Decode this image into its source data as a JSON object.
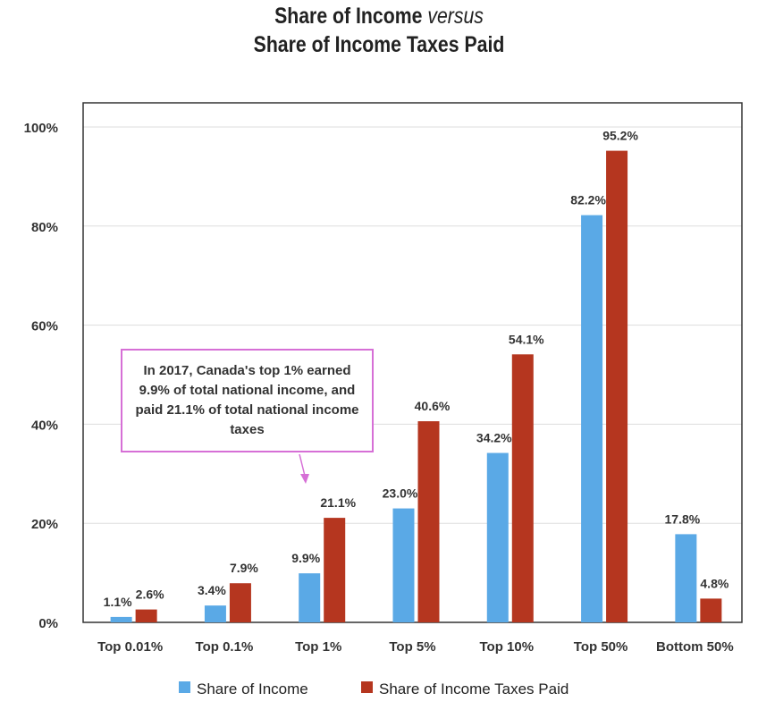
{
  "chart_data": {
    "type": "bar",
    "title_line1": "Share of Income",
    "title_italic": "versus",
    "title_line2": "Share of Income Taxes Paid",
    "categories": [
      "Top 0.01%",
      "Top 0.1%",
      "Top 1%",
      "Top 5%",
      "Top 10%",
      "Top 50%",
      "Bottom 50%"
    ],
    "series": [
      {
        "name": "Share of Income",
        "color": "#5aa9e6",
        "values": [
          1.1,
          3.4,
          9.9,
          23.0,
          34.2,
          82.2,
          17.8
        ],
        "labels": [
          "1.1%",
          "3.4%",
          "9.9%",
          "23.0%",
          "34.2%",
          "82.2%",
          "17.8%"
        ]
      },
      {
        "name": "Share of Income Taxes Paid",
        "color": "#b5361f",
        "values": [
          2.6,
          7.9,
          21.1,
          40.6,
          54.1,
          95.2,
          4.8
        ],
        "labels": [
          "2.6%",
          "7.9%",
          "21.1%",
          "40.6%",
          "54.1%",
          "95.2%",
          "4.8%"
        ]
      }
    ],
    "yticks": [
      0,
      20,
      40,
      60,
      80,
      100
    ],
    "ytick_labels": [
      "0%",
      "20%",
      "40%",
      "60%",
      "80%",
      "100%"
    ],
    "ylim": [
      0,
      100
    ],
    "grid": true,
    "legend_position": "bottom",
    "annotation": "In 2017, Canada's top 1% earned 9.9% of total national income, and paid 21.1% of total national income taxes",
    "annotation_color": "#d66fd6"
  }
}
